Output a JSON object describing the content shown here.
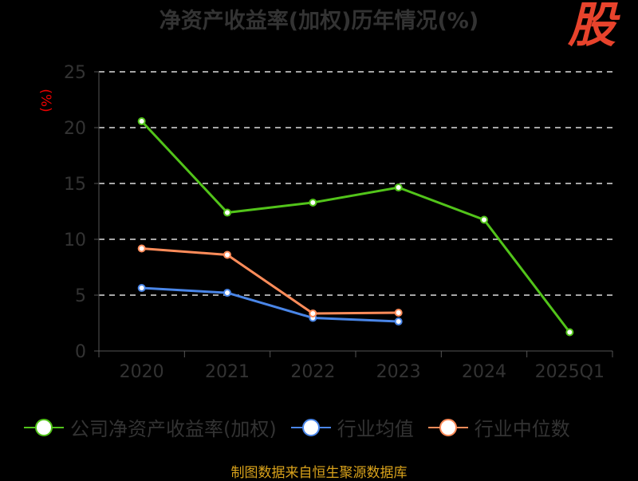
{
  "chart_data": {
    "type": "line",
    "title": "净资产收益率(加权)历年情况(%)",
    "ylabel": "(%)",
    "xlabel": "",
    "categories": [
      "2020",
      "2021",
      "2022",
      "2023",
      "2024",
      "2025Q1"
    ],
    "ylim": [
      0,
      25
    ],
    "yticks": [
      0,
      5,
      10,
      15,
      20,
      25
    ],
    "grid": true,
    "legend_position": "bottom",
    "series": [
      {
        "name": "公司净资产收益率(加权)",
        "color": "#52c41a",
        "values": [
          20.57,
          12.39,
          13.29,
          14.64,
          11.75,
          1.68
        ]
      },
      {
        "name": "行业均值",
        "color": "#4a86e8",
        "values": [
          5.64,
          5.21,
          2.96,
          2.64,
          null,
          null
        ]
      },
      {
        "name": "行业中位数",
        "color": "#ff8c5a",
        "values": [
          9.18,
          8.61,
          3.36,
          3.43,
          null,
          null
        ]
      }
    ]
  },
  "source": "制图数据来自恒生聚源数据库",
  "logo_text": "股"
}
